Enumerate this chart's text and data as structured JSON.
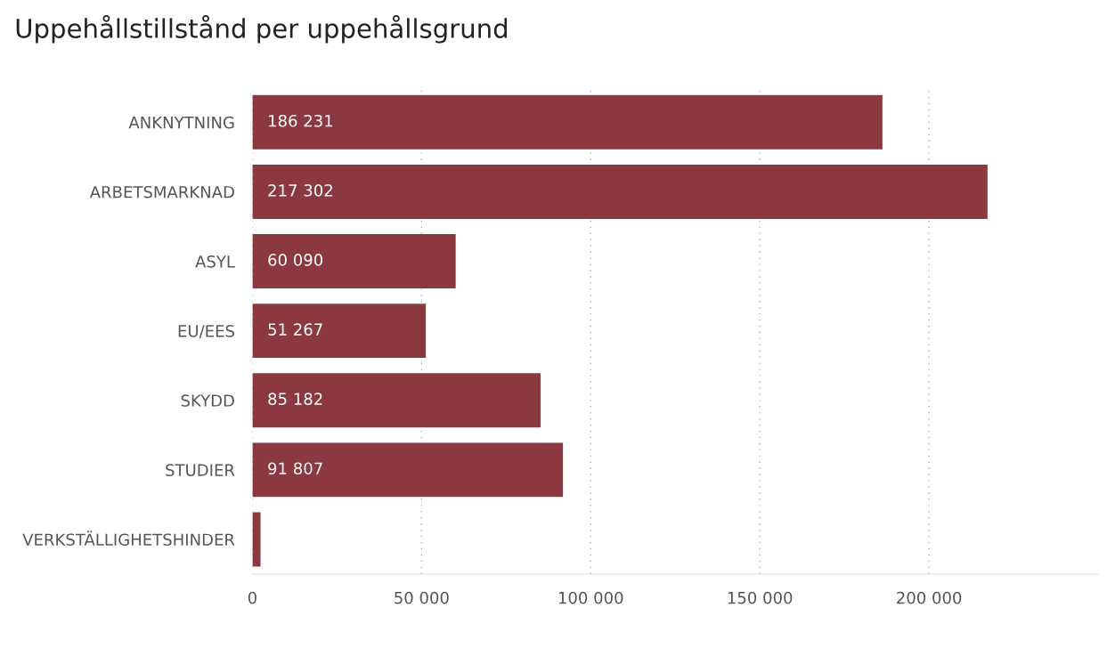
{
  "chart_data": {
    "type": "bar",
    "orientation": "horizontal",
    "title": "Uppehållstillstånd per uppehållsgrund",
    "categories": [
      "ANKNYTNING",
      "ARBETSMARKNAD",
      "ASYL",
      "EU/EES",
      "SKYDD",
      "STUDIER",
      "VERKSTÄLLIGHETSHINDER"
    ],
    "values": [
      186231,
      217302,
      60090,
      51267,
      85182,
      91807,
      2400
    ],
    "value_labels": [
      "186 231",
      "217 302",
      "60 090",
      "51 267",
      "85 182",
      "91 807",
      null
    ],
    "color": "#8b3840",
    "xlim": [
      0,
      250000
    ],
    "xticks": [
      0,
      {
        "value": 50000,
        "label": "50 000"
      },
      {
        "value": 100000,
        "label": "100 000"
      },
      {
        "value": 150000,
        "label": "150 000"
      },
      {
        "value": 200000,
        "label": "200 000"
      }
    ],
    "grid": "x"
  }
}
